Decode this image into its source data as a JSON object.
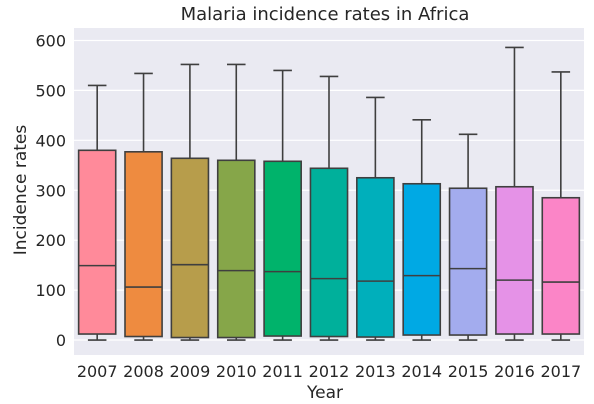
{
  "chart_data": {
    "type": "box",
    "title": "Malaria incidence rates in Africa",
    "xlabel": "Year",
    "ylabel": "Incidence rates",
    "ylim": [
      -30,
      625
    ],
    "yticks": [
      0,
      100,
      200,
      300,
      400,
      500,
      600
    ],
    "grid": true,
    "categories": [
      "2007",
      "2008",
      "2009",
      "2010",
      "2011",
      "2012",
      "2013",
      "2014",
      "2015",
      "2016",
      "2017"
    ],
    "boxes": [
      {
        "min": 0,
        "q1": 12,
        "median": 149,
        "q3": 380,
        "max": 510
      },
      {
        "min": 0,
        "q1": 7,
        "median": 106,
        "q3": 377,
        "max": 534
      },
      {
        "min": 0,
        "q1": 5,
        "median": 151,
        "q3": 364,
        "max": 552
      },
      {
        "min": 0,
        "q1": 5,
        "median": 139,
        "q3": 360,
        "max": 552
      },
      {
        "min": 0,
        "q1": 8,
        "median": 137,
        "q3": 358,
        "max": 540
      },
      {
        "min": 0,
        "q1": 7,
        "median": 123,
        "q3": 344,
        "max": 528
      },
      {
        "min": 0,
        "q1": 6,
        "median": 118,
        "q3": 325,
        "max": 486
      },
      {
        "min": 0,
        "q1": 10,
        "median": 129,
        "q3": 313,
        "max": 441
      },
      {
        "min": 0,
        "q1": 10,
        "median": 143,
        "q3": 304,
        "max": 412
      },
      {
        "min": 0,
        "q1": 12,
        "median": 120,
        "q3": 307,
        "max": 586
      },
      {
        "min": 0,
        "q1": 12,
        "median": 116,
        "q3": 285,
        "max": 537
      }
    ],
    "colors": [
      "#ff8a9a",
      "#ee8b40",
      "#b79d4b",
      "#86a649",
      "#00b36b",
      "#00b09b",
      "#00afbb",
      "#00a9e4",
      "#a3acee",
      "#e592e7",
      "#fb85c7"
    ]
  }
}
